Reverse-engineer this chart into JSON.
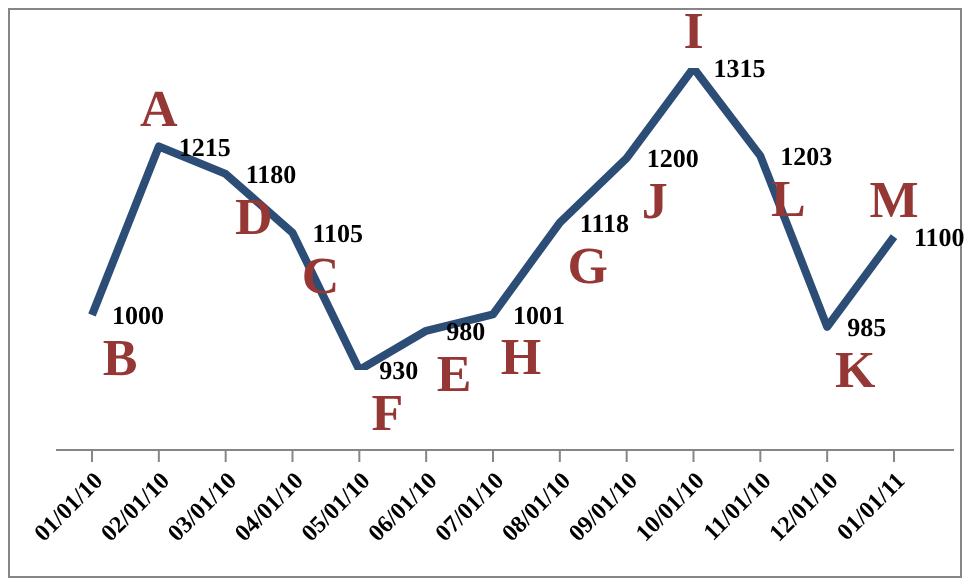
{
  "chart_data": {
    "type": "line",
    "categories": [
      "01/01/10",
      "02/01/10",
      "03/01/10",
      "04/01/10",
      "05/01/10",
      "06/01/10",
      "07/01/10",
      "08/01/10",
      "09/01/10",
      "10/01/10",
      "11/01/10",
      "12/01/10",
      "01/01/11"
    ],
    "series": [
      {
        "color": "#2c4d75",
        "values": [
          1000,
          1215,
          1180,
          1105,
          930,
          980,
          1001,
          1118,
          1200,
          1315,
          1203,
          985,
          1100
        ]
      }
    ],
    "tick_labels": "x",
    "data_labels": true,
    "grid": false,
    "legend": false,
    "marker": "none",
    "line_style": "solid",
    "annotations": [
      {
        "text": "B",
        "x": "01/01/10",
        "y": 1000
      },
      {
        "text": "A",
        "x": "02/01/10",
        "y": 1215
      },
      {
        "text": "D",
        "x": "03/01/10",
        "y": 1180
      },
      {
        "text": "C",
        "x": "04/01/10",
        "y": 1105
      },
      {
        "text": "F",
        "x": "05/01/10",
        "y": 930
      },
      {
        "text": "E",
        "x": "06/01/10",
        "y": 980
      },
      {
        "text": "H",
        "x": "07/01/10",
        "y": 1001
      },
      {
        "text": "G",
        "x": "08/01/10",
        "y": 1118
      },
      {
        "text": "J",
        "x": "09/01/10",
        "y": 1200
      },
      {
        "text": "I",
        "x": "10/01/10",
        "y": 1315
      },
      {
        "text": "L",
        "x": "11/01/10",
        "y": 1203
      },
      {
        "text": "K",
        "x": "12/01/10",
        "y": 985
      },
      {
        "text": "M",
        "x": "01/01/11",
        "y": 1100
      }
    ]
  }
}
